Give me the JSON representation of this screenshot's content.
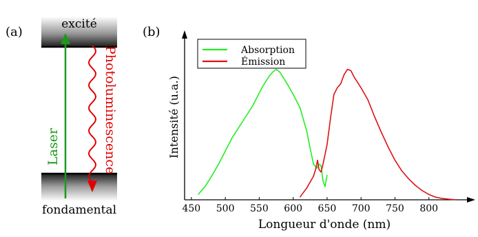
{
  "panel_a": {
    "label": "(a)",
    "excited_label": "excité",
    "ground_label": "fondamental",
    "laser_label": "Laser",
    "pl_label": "Photoluminescence",
    "colors": {
      "laser": "#1a9a1a",
      "pl": "#e00000",
      "level": "#000000"
    }
  },
  "panel_b": {
    "label": "(b)"
  },
  "chart_data": {
    "type": "line",
    "xlabel": "Longueur d'onde  (nm)",
    "ylabel": "Intensité (u.a.)",
    "xlim": [
      440,
      850
    ],
    "ylim": [
      0,
      1.15
    ],
    "xticks": [
      450,
      500,
      550,
      600,
      650,
      700,
      750,
      800
    ],
    "legend_position": "top-left",
    "series": [
      {
        "name": "Absorption",
        "color": "#22ee22",
        "x": [
          460,
          470,
          480,
          490,
          500,
          510,
          520,
          530,
          540,
          550,
          555,
          560,
          565,
          570,
          575,
          580,
          590,
          600,
          610,
          620,
          625,
          630,
          635,
          638,
          641,
          644,
          647,
          650
        ],
        "y": [
          0.04,
          0.1,
          0.18,
          0.27,
          0.37,
          0.47,
          0.55,
          0.63,
          0.71,
          0.81,
          0.86,
          0.9,
          0.94,
          0.97,
          0.99,
          0.97,
          0.89,
          0.8,
          0.7,
          0.52,
          0.39,
          0.27,
          0.24,
          0.27,
          0.26,
          0.14,
          0.1,
          0.19
        ]
      },
      {
        "name": "Émission",
        "color": "#dd1111",
        "x": [
          610,
          620,
          630,
          633,
          636,
          638,
          641,
          644,
          650,
          655,
          660,
          665,
          670,
          675,
          680,
          685,
          690,
          700,
          710,
          720,
          730,
          740,
          750,
          760,
          770,
          780,
          790,
          800,
          810,
          820,
          830,
          840
        ],
        "y": [
          0.02,
          0.09,
          0.18,
          0.23,
          0.3,
          0.23,
          0.21,
          0.27,
          0.42,
          0.62,
          0.8,
          0.85,
          0.88,
          0.95,
          0.99,
          0.98,
          0.93,
          0.85,
          0.76,
          0.63,
          0.51,
          0.4,
          0.3,
          0.22,
          0.16,
          0.11,
          0.07,
          0.04,
          0.02,
          0.01,
          0.004,
          0.0
        ]
      }
    ]
  }
}
